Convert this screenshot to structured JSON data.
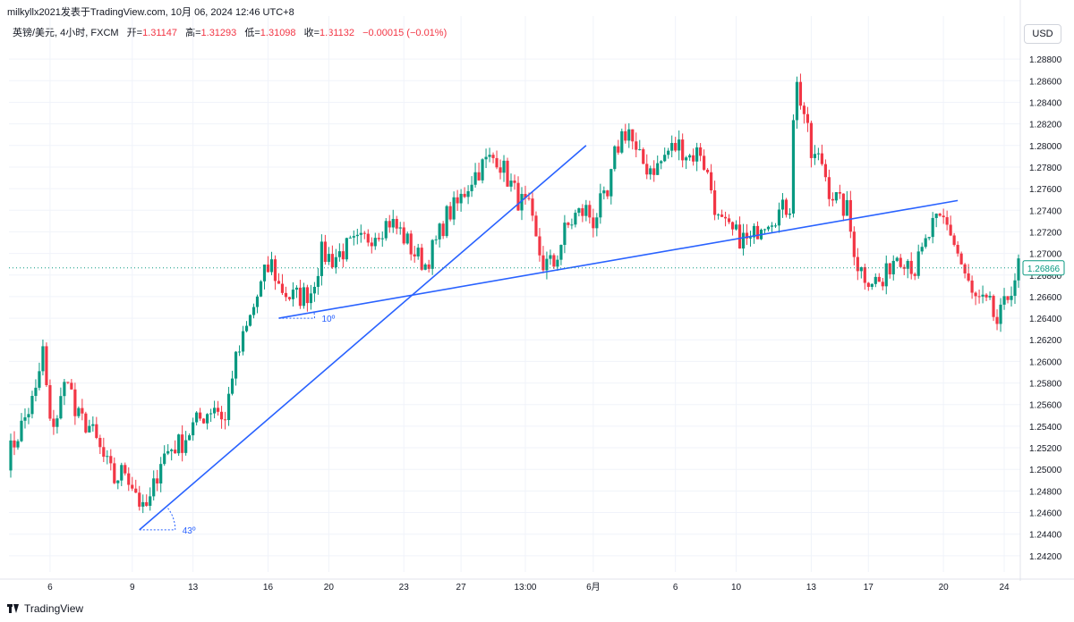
{
  "header": {
    "published": "milkyllx2021发表于TradingView.com,  10月 06, 2024 12:46 UTC+8"
  },
  "legend": {
    "symbol": "英镑/美元, 4小时, FXCM",
    "open_label": "开=",
    "open": "1.31147",
    "high_label": "高=",
    "high": "1.31293",
    "low_label": "低=",
    "low": "1.31098",
    "close_label": "收=",
    "close": "1.31132",
    "change": "−0.00015 (−0.01%)"
  },
  "currency_button": "USD",
  "footer": {
    "brand": "TradingView"
  },
  "colors": {
    "up": "#089981",
    "down": "#f23645",
    "trendline": "#2962ff",
    "grid": "#f0f3fa",
    "axis_text": "#131722"
  },
  "chart_data": {
    "type": "candlestick",
    "symbol": "英镑/美元",
    "timeframe": "4小时",
    "y_ticks": [
      "1.28800",
      "1.28600",
      "1.28400",
      "1.28200",
      "1.28000",
      "1.27800",
      "1.27600",
      "1.27400",
      "1.27200",
      "1.27000",
      "1.26800",
      "1.26600",
      "1.26400",
      "1.26200",
      "1.26000",
      "1.25800",
      "1.25600",
      "1.25400",
      "1.25200",
      "1.25000",
      "1.24800",
      "1.24600",
      "1.24400",
      "1.24200"
    ],
    "y_tick_values": [
      1.288,
      1.286,
      1.284,
      1.282,
      1.28,
      1.278,
      1.276,
      1.274,
      1.272,
      1.27,
      1.268,
      1.266,
      1.264,
      1.262,
      1.26,
      1.258,
      1.256,
      1.254,
      1.252,
      1.25,
      1.248,
      1.246,
      1.244,
      1.242
    ],
    "ylim": [
      1.2405,
      1.2895
    ],
    "x_tick_labels": [
      {
        "label": "6",
        "bar": 11
      },
      {
        "label": "9",
        "bar": 34
      },
      {
        "label": "13",
        "bar": 51
      },
      {
        "label": "16",
        "bar": 72
      },
      {
        "label": "20",
        "bar": 89
      },
      {
        "label": "23",
        "bar": 110
      },
      {
        "label": "27",
        "bar": 126
      },
      {
        "label": "13:00",
        "bar": 144
      },
      {
        "label": "6月",
        "bar": 163
      },
      {
        "label": "6",
        "bar": 186
      },
      {
        "label": "10",
        "bar": 203
      },
      {
        "label": "13",
        "bar": 224
      },
      {
        "label": "17",
        "bar": 240
      },
      {
        "label": "20",
        "bar": 261
      },
      {
        "label": "24",
        "bar": 278
      }
    ],
    "current_price": "1.26866",
    "current_price_value": 1.26866,
    "bar_count": 283,
    "keypoints": [
      [
        0,
        1.251
      ],
      [
        4,
        1.254
      ],
      [
        8,
        1.257
      ],
      [
        10,
        1.261
      ],
      [
        12,
        1.254
      ],
      [
        14,
        1.255
      ],
      [
        17,
        1.259
      ],
      [
        19,
        1.255
      ],
      [
        23,
        1.254
      ],
      [
        27,
        1.251
      ],
      [
        30,
        1.249
      ],
      [
        33,
        1.25
      ],
      [
        36,
        1.248
      ],
      [
        38,
        1.246
      ],
      [
        40,
        1.247
      ],
      [
        43,
        1.251
      ],
      [
        46,
        1.252
      ],
      [
        49,
        1.2525
      ],
      [
        52,
        1.254
      ],
      [
        55,
        1.255
      ],
      [
        58,
        1.256
      ],
      [
        61,
        1.2545
      ],
      [
        63,
        1.259
      ],
      [
        65,
        1.261
      ],
      [
        68,
        1.264
      ],
      [
        70,
        1.266
      ],
      [
        72,
        1.268
      ],
      [
        74,
        1.269
      ],
      [
        76,
        1.267
      ],
      [
        79,
        1.266
      ],
      [
        82,
        1.266
      ],
      [
        85,
        1.2665
      ],
      [
        88,
        1.27
      ],
      [
        91,
        1.2695
      ],
      [
        95,
        1.2705
      ],
      [
        99,
        1.271
      ],
      [
        103,
        1.272
      ],
      [
        107,
        1.273
      ],
      [
        110,
        1.272
      ],
      [
        114,
        1.27
      ],
      [
        117,
        1.269
      ],
      [
        120,
        1.271
      ],
      [
        123,
        1.2735
      ],
      [
        126,
        1.2745
      ],
      [
        130,
        1.277
      ],
      [
        134,
        1.2785
      ],
      [
        137,
        1.279
      ],
      [
        140,
        1.277
      ],
      [
        143,
        1.275
      ],
      [
        146,
        1.274
      ],
      [
        148,
        1.271
      ],
      [
        150,
        1.269
      ],
      [
        153,
        1.269
      ],
      [
        156,
        1.272
      ],
      [
        159,
        1.2735
      ],
      [
        162,
        1.274
      ],
      [
        164,
        1.273
      ],
      [
        166,
        1.2745
      ],
      [
        168,
        1.275
      ],
      [
        170,
        1.279
      ],
      [
        172,
        1.281
      ],
      [
        174,
        1.2815
      ],
      [
        176,
        1.279
      ],
      [
        179,
        1.278
      ],
      [
        182,
        1.278
      ],
      [
        185,
        1.2795
      ],
      [
        188,
        1.28
      ],
      [
        191,
        1.279
      ],
      [
        194,
        1.2795
      ],
      [
        197,
        1.276
      ],
      [
        199,
        1.273
      ],
      [
        202,
        1.272
      ],
      [
        205,
        1.2715
      ],
      [
        208,
        1.271
      ],
      [
        211,
        1.273
      ],
      [
        214,
        1.2735
      ],
      [
        217,
        1.274
      ],
      [
        219,
        1.2745
      ],
      [
        220,
        1.283
      ],
      [
        221,
        1.2855
      ],
      [
        223,
        1.283
      ],
      [
        225,
        1.279
      ],
      [
        228,
        1.2785
      ],
      [
        230,
        1.276
      ],
      [
        233,
        1.2745
      ],
      [
        235,
        1.274
      ],
      [
        236,
        1.272
      ],
      [
        238,
        1.269
      ],
      [
        240,
        1.268
      ],
      [
        243,
        1.2675
      ],
      [
        245,
        1.267
      ],
      [
        247,
        1.269
      ],
      [
        249,
        1.27
      ],
      [
        252,
        1.2695
      ],
      [
        254,
        1.2685
      ],
      [
        256,
        1.27
      ],
      [
        259,
        1.2725
      ],
      [
        262,
        1.273
      ],
      [
        264,
        1.272
      ],
      [
        266,
        1.27
      ],
      [
        268,
        1.268
      ],
      [
        270,
        1.266
      ],
      [
        272,
        1.2655
      ],
      [
        275,
        1.265
      ],
      [
        277,
        1.2635
      ],
      [
        279,
        1.265
      ],
      [
        281,
        1.267
      ],
      [
        283,
        1.2687
      ]
    ],
    "trendlines": [
      {
        "from": {
          "bar": 36,
          "price": 1.2444
        },
        "to": {
          "bar": 161,
          "price": 1.28
        },
        "angle_label": "43º"
      },
      {
        "from": {
          "bar": 75,
          "price": 1.264
        },
        "to": {
          "bar": 265,
          "price": 1.2749
        },
        "angle_label": "10º"
      }
    ]
  }
}
